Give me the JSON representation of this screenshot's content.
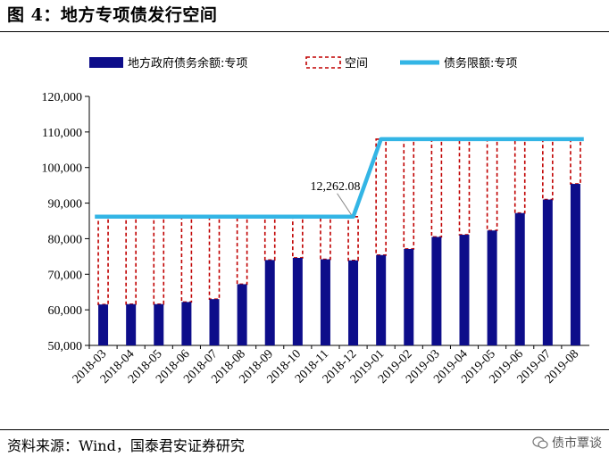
{
  "figure": {
    "title": "图 4：地方专项债发行空间",
    "source": "资料来源：Wind，国泰君安证券研究",
    "watermark": "债市覃谈"
  },
  "chart_data": {
    "type": "bar",
    "categories": [
      "2018-03",
      "2018-04",
      "2018-05",
      "2018-06",
      "2018-07",
      "2018-08",
      "2018-09",
      "2018-10",
      "2018-11",
      "2018-12",
      "2019-01",
      "2019-02",
      "2019-03",
      "2019-04",
      "2019-05",
      "2019-06",
      "2019-07",
      "2019-08"
    ],
    "series": [
      {
        "name": "地方政府债务余额:专项",
        "kind": "bar",
        "color": "#0d0d8a",
        "values": [
          61500,
          61600,
          61600,
          62200,
          63000,
          67200,
          74000,
          74600,
          74200,
          73900,
          75400,
          77100,
          80500,
          81100,
          82300,
          87200,
          91000,
          95400
        ]
      },
      {
        "name": "空间",
        "kind": "dashed-box",
        "color": "#c00000"
      },
      {
        "name": "债务限额:专项",
        "kind": "line",
        "color": "#33b5e5",
        "values": [
          86185,
          86185,
          86185,
          86185,
          86185,
          86185,
          86185,
          86185,
          86185,
          86185,
          107985,
          107985,
          107985,
          107985,
          107985,
          107985,
          107985,
          107985
        ]
      }
    ],
    "ylim": [
      50000,
      120000
    ],
    "yticks": [
      50000,
      60000,
      70000,
      80000,
      90000,
      100000,
      110000,
      120000
    ],
    "ytick_labels": [
      "50,000",
      "60,000",
      "70,000",
      "80,000",
      "90,000",
      "100,000",
      "110,000",
      "120,000"
    ],
    "annotation": {
      "text": "12,262.08",
      "category": "2018-12"
    },
    "legend_position": "top",
    "grid": false
  }
}
